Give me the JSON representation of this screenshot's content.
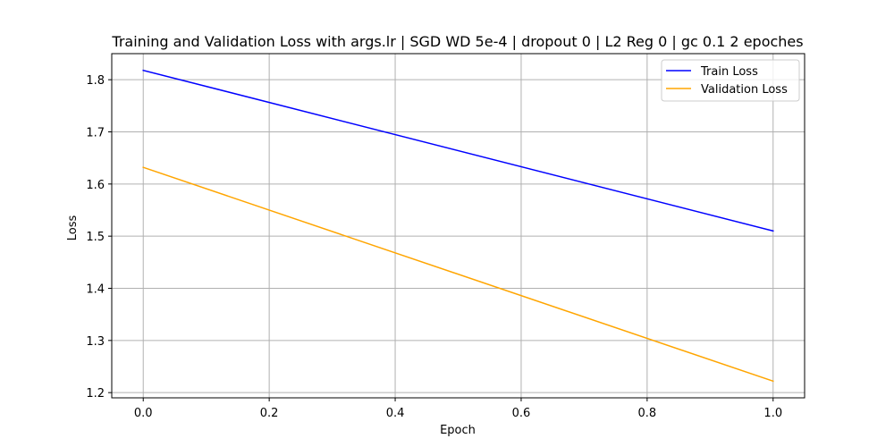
{
  "chart_data": {
    "type": "line",
    "title": "Training and Validation Loss with args.lr | SGD WD 5e-4 | dropout 0 | L2 Reg 0 | gc 0.1 2 epoches",
    "xlabel": "Epoch",
    "ylabel": "Loss",
    "x": [
      0.0,
      1.0
    ],
    "xlim": [
      -0.05,
      1.05
    ],
    "ylim": [
      1.19,
      1.85
    ],
    "xticks": [
      0.0,
      0.2,
      0.4,
      0.6,
      0.8,
      1.0
    ],
    "xtick_labels": [
      "0.0",
      "0.2",
      "0.4",
      "0.6",
      "0.8",
      "1.0"
    ],
    "yticks": [
      1.2,
      1.3,
      1.4,
      1.5,
      1.6,
      1.7,
      1.8
    ],
    "ytick_labels": [
      "1.2",
      "1.3",
      "1.4",
      "1.5",
      "1.6",
      "1.7",
      "1.8"
    ],
    "grid": true,
    "legend_position": "top-right",
    "series": [
      {
        "name": "Train Loss",
        "values": [
          1.818,
          1.51
        ],
        "color": "#0000ff"
      },
      {
        "name": "Validation Loss",
        "values": [
          1.632,
          1.222
        ],
        "color": "#ffa500"
      }
    ]
  }
}
